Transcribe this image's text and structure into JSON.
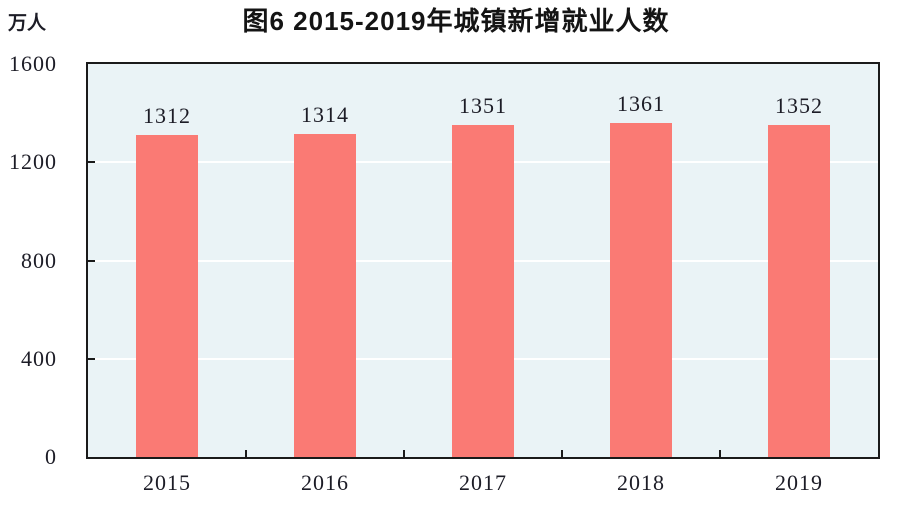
{
  "chart_data": {
    "type": "bar",
    "title": "图6  2015-2019年城镇新增就业人数",
    "unit_label": "万人",
    "categories": [
      "2015",
      "2016",
      "2017",
      "2018",
      "2019"
    ],
    "values": [
      1312,
      1314,
      1351,
      1361,
      1352
    ],
    "ylim": [
      0,
      1600
    ],
    "yticks": [
      0,
      400,
      800,
      1200,
      1600
    ],
    "legend": "none",
    "grid": "horizontal",
    "colors": {
      "bar": "#FA7A74",
      "plot_background": "#EAF3F6",
      "axis": "#1A1A1A",
      "gridline": "#FFFFFF",
      "text": "#1C1C26"
    }
  }
}
